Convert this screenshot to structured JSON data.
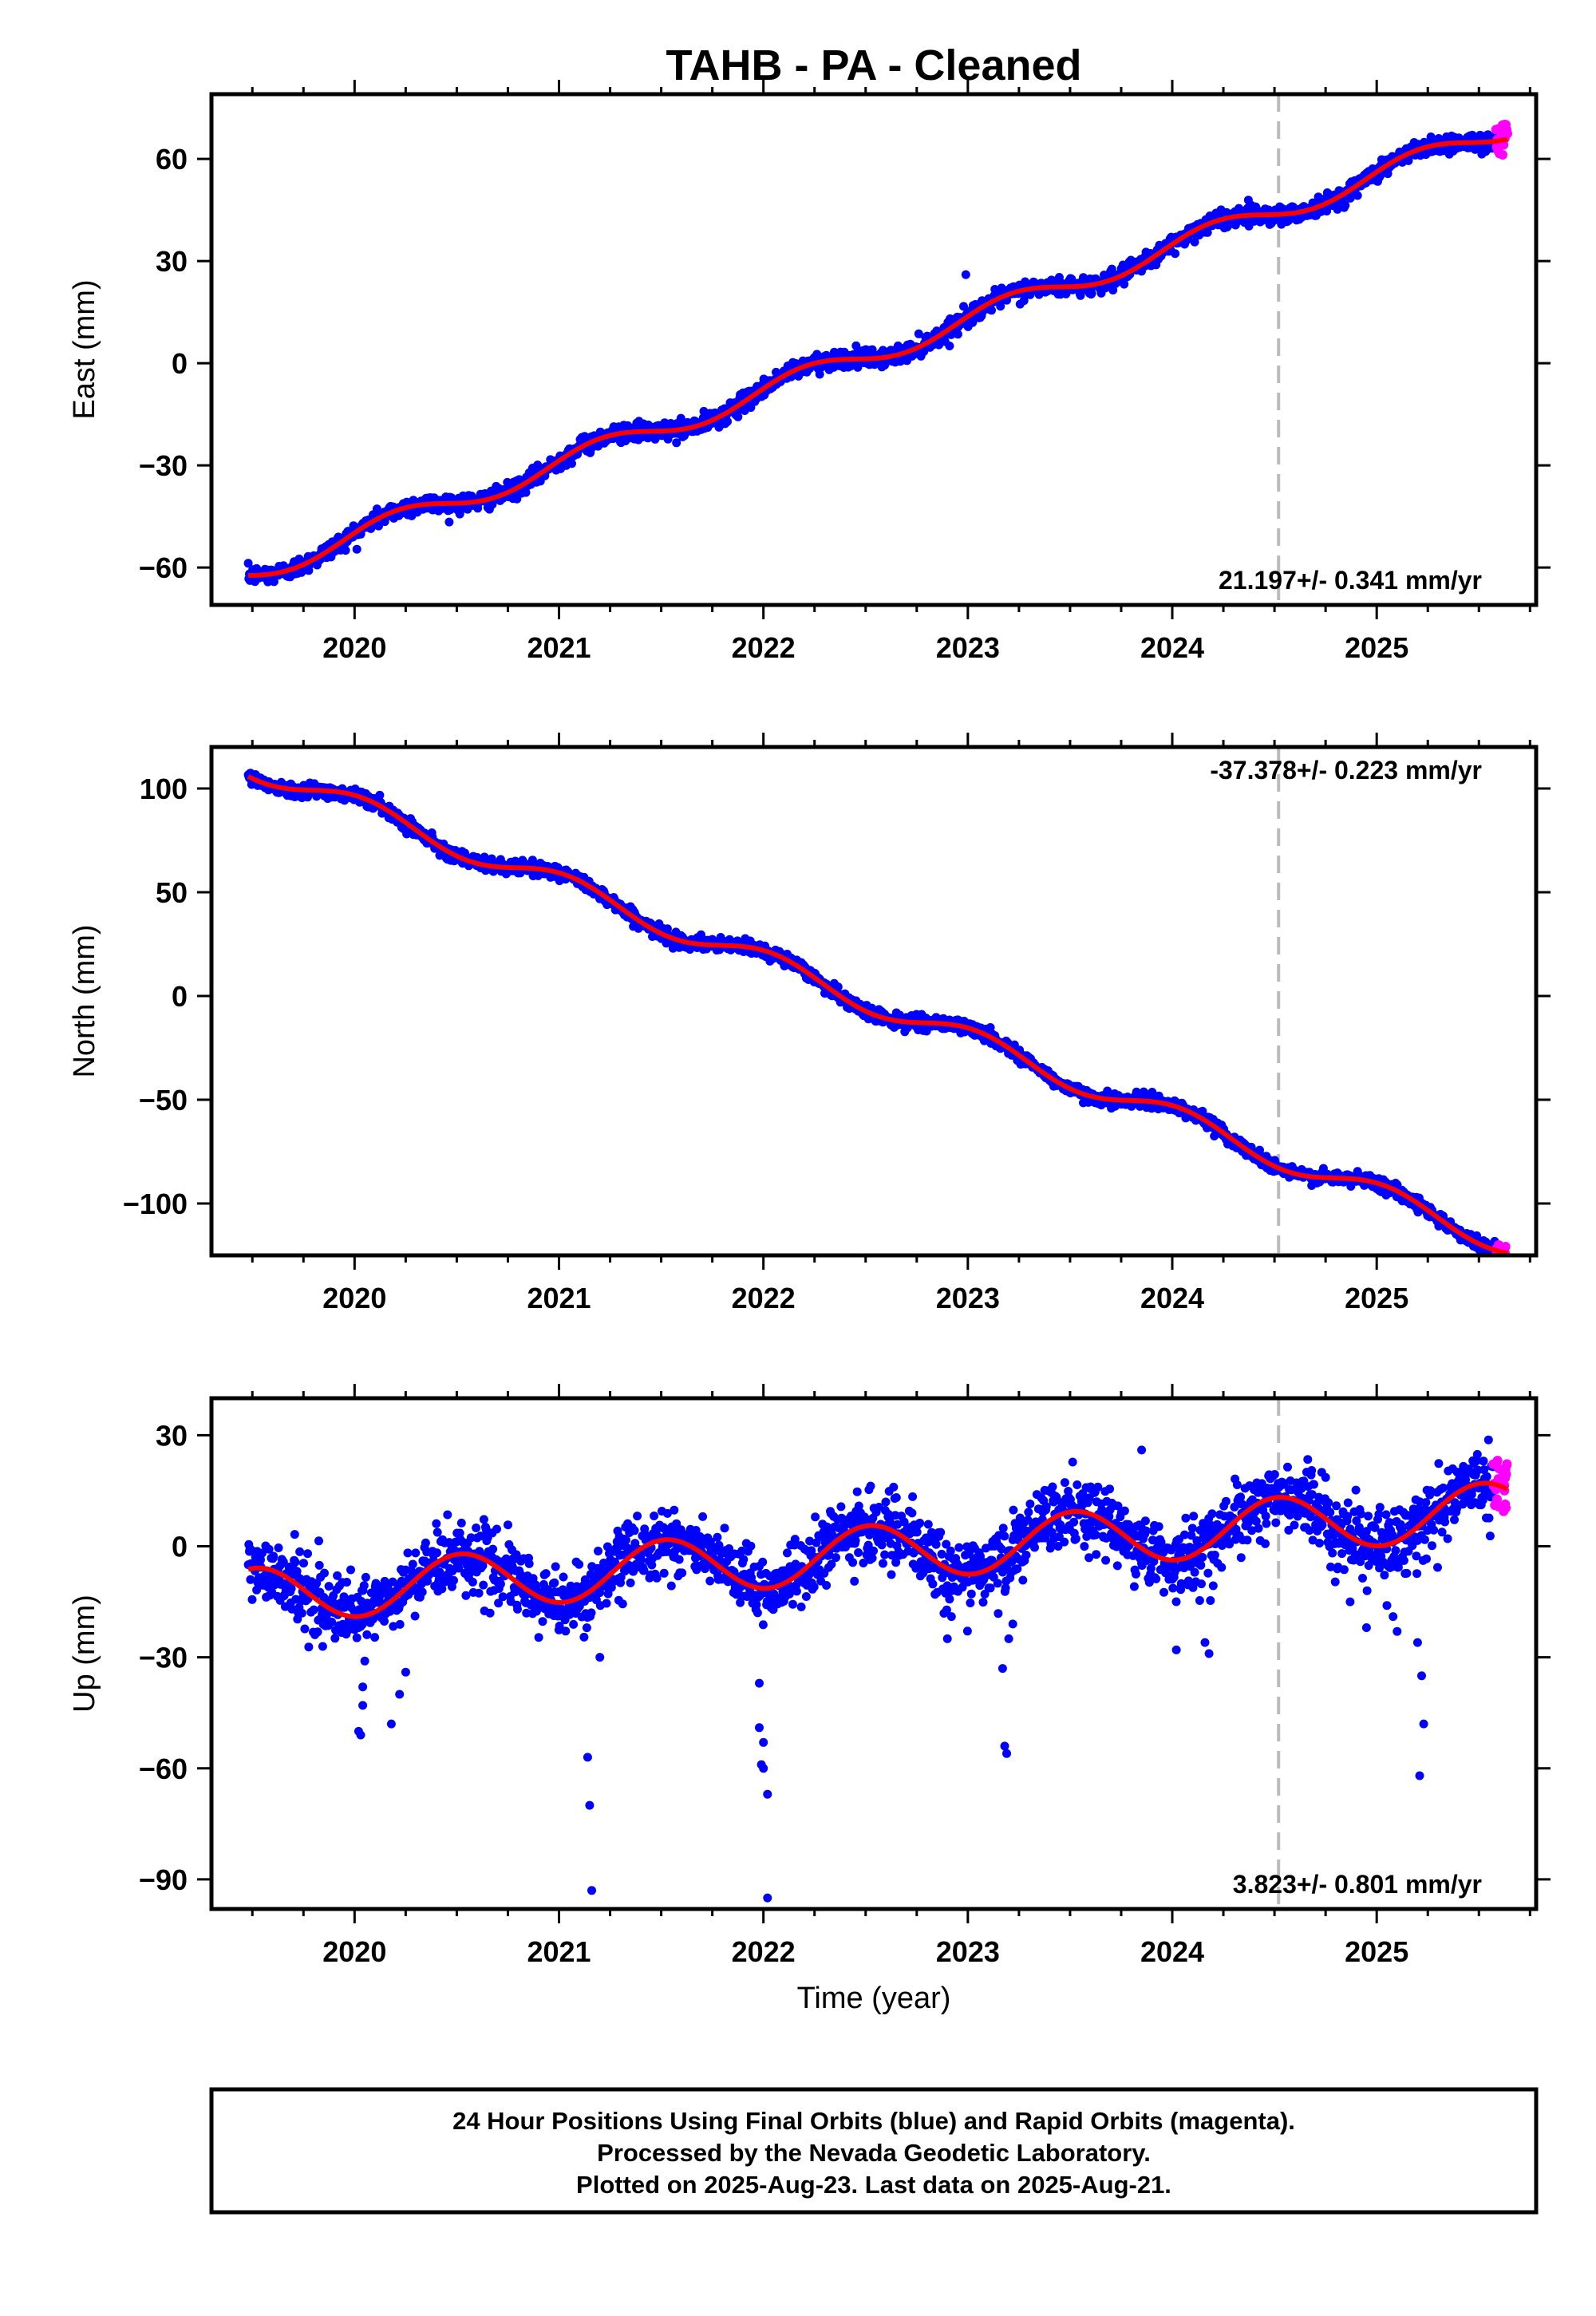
{
  "colors": {
    "final_points": "#0000ff",
    "rapid_points": "#ff00ff",
    "model_fit": "#ff0000",
    "marker_line": "#bbbbbb",
    "frame": "#000000"
  },
  "chart_data": {
    "type": "scatter",
    "title": "TAHB  - PA - Cleaned",
    "xlabel": "Time (year)",
    "xlim": [
      2019.3,
      2025.78
    ],
    "xticks": [
      2020,
      2021,
      2022,
      2023,
      2024,
      2025
    ],
    "xtick_labels": [
      "2020",
      "2021",
      "2022",
      "2023",
      "2024",
      "2025"
    ],
    "vertical_marker_x": 2024.52,
    "grid": false,
    "panels": [
      {
        "id": "east",
        "ylabel": "East (mm)",
        "ylim": [
          -71,
          79
        ],
        "yticks": [
          60,
          30,
          0,
          -30,
          -60
        ],
        "ytick_labels": [
          "60",
          "30",
          "0",
          "−30",
          "−60"
        ],
        "rate_label": "21.197+/- 0.341 mm/yr",
        "rate_position": "bottom-right",
        "rate": 21.197,
        "rate_uncertainty": 0.341,
        "model": {
          "fit_start": 2019.48,
          "fit_end": 2025.64,
          "t0": 2022.5,
          "offset": 2.2,
          "rate": 21.197,
          "annual_amplitude": 3.2,
          "annual_phase": 0.3,
          "noise": 1.3,
          "rapid_count": 22,
          "rapid_range": [
            2025.58,
            2025.64
          ],
          "rapid_spread": 4.5
        },
        "outliers": [
          [
            2022.99,
            26
          ]
        ]
      },
      {
        "id": "north",
        "ylabel": "North (mm)",
        "ylim": [
          -125,
          120
        ],
        "yticks": [
          100,
          50,
          0,
          -50,
          -100
        ],
        "ytick_labels": [
          "100",
          "50",
          "0",
          "−50",
          "−100"
        ],
        "rate_label": "-37.378+/- 0.223 mm/yr",
        "rate_position": "top-right",
        "rate": -37.378,
        "rate_uncertainty": 0.223,
        "model": {
          "fit_start": 2019.48,
          "fit_end": 2025.64,
          "t0": 2022.5,
          "offset": -2.0,
          "rate": -37.378,
          "annual_amplitude": 5.5,
          "annual_phase": 1.3,
          "noise": 1.6,
          "rapid_count": 22,
          "rapid_range": [
            2025.58,
            2025.64
          ],
          "rapid_spread": 3.5
        },
        "outliers": []
      },
      {
        "id": "up",
        "ylabel": "Up (mm)",
        "ylim": [
          -98,
          40
        ],
        "yticks": [
          30,
          0,
          -30,
          -60,
          -90
        ],
        "ytick_labels": [
          "30",
          "0",
          "−30",
          "−60",
          "−90"
        ],
        "rate_label": "3.823+/- 0.801 mm/yr",
        "rate_position": "bottom-right",
        "rate": 3.823,
        "rate_uncertainty": 0.801,
        "model": {
          "fit_start": 2019.48,
          "fit_end": 2025.64,
          "t0": 2022.5,
          "offset": -2.0,
          "rate": 3.823,
          "annual_amplitude": 7.5,
          "annual_phase": 4.6,
          "noise": 4.5,
          "rapid_count": 28,
          "rapid_range": [
            2025.57,
            2025.64
          ],
          "rapid_spread": 8
        },
        "outliers": [
          [
            2020.02,
            -50
          ],
          [
            2020.03,
            -51
          ],
          [
            2020.04,
            -43
          ],
          [
            2020.04,
            -38
          ],
          [
            2020.05,
            -31
          ],
          [
            2020.18,
            -48
          ],
          [
            2020.22,
            -40
          ],
          [
            2020.25,
            -34
          ],
          [
            2021.14,
            -57
          ],
          [
            2021.15,
            -70
          ],
          [
            2021.16,
            -93
          ],
          [
            2021.2,
            -30
          ],
          [
            2021.98,
            -37
          ],
          [
            2021.98,
            -49
          ],
          [
            2021.99,
            -59
          ],
          [
            2022.0,
            -53
          ],
          [
            2022.02,
            -67
          ],
          [
            2022.02,
            -95
          ],
          [
            2022.0,
            -60
          ],
          [
            2023.17,
            -33
          ],
          [
            2023.18,
            -54
          ],
          [
            2023.19,
            -56
          ],
          [
            2023.2,
            -25
          ],
          [
            2023.22,
            -21
          ],
          [
            2022.9,
            -25
          ],
          [
            2022.92,
            -19
          ],
          [
            2024.02,
            -28
          ],
          [
            2024.16,
            -26
          ],
          [
            2024.18,
            -29
          ],
          [
            2024.87,
            -15
          ],
          [
            2024.95,
            -22
          ],
          [
            2025.05,
            -16
          ],
          [
            2025.08,
            -19
          ],
          [
            2025.1,
            -23
          ],
          [
            2025.2,
            -26
          ],
          [
            2025.22,
            -35
          ],
          [
            2025.23,
            -48
          ],
          [
            2025.21,
            -62
          ],
          [
            2023.85,
            26
          ]
        ]
      }
    ]
  },
  "footer": {
    "line1": "24 Hour Positions Using Final Orbits (blue) and Rapid Orbits (magenta).",
    "line2": "Processed by the Nevada Geodetic Laboratory.",
    "line3": "Plotted on 2025-Aug-23. Last data on 2025-Aug-21."
  }
}
